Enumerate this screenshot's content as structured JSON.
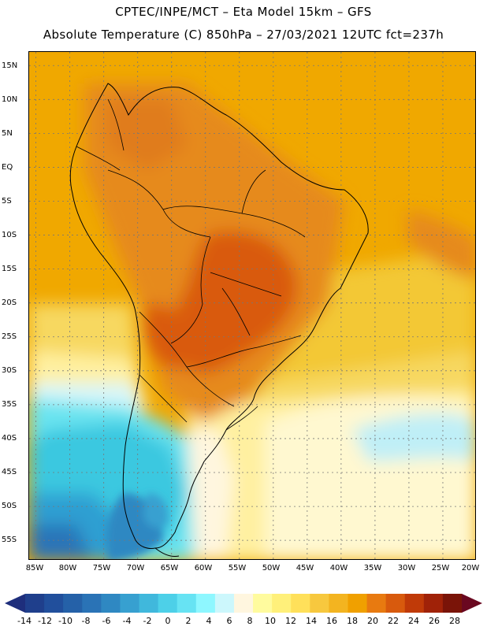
{
  "header": {
    "line1": "CPTEC/INPE/MCT –  Eta Model 15km – GFS",
    "line2": "Absolute Temperature (C) 850hPa – 27/03/2021 12UTC fct=237h"
  },
  "map": {
    "lat_labels": [
      "15N",
      "10N",
      "5N",
      "EQ",
      "5S",
      "10S",
      "15S",
      "20S",
      "25S",
      "30S",
      "35S",
      "40S",
      "45S",
      "50S",
      "55S"
    ],
    "lon_labels": [
      "85W",
      "80W",
      "75W",
      "70W",
      "65W",
      "60W",
      "55W",
      "50W",
      "45W",
      "40W",
      "35W",
      "30W",
      "25W",
      "20W"
    ],
    "lat_range": [
      17,
      -58
    ],
    "lon_range": [
      -86,
      -20
    ],
    "gridlines": "dotted",
    "shading": [
      {
        "color": "#f0a800",
        "level": "18-20 background ocean north"
      },
      {
        "color": "#e68a1a",
        "level": "20-22 continent"
      },
      {
        "color": "#d95a0d",
        "level": "22-24 central Brazil"
      },
      {
        "color": "#f3c836",
        "level": "16-18 south Atlantic"
      },
      {
        "color": "#fff0a0",
        "level": "10-12"
      },
      {
        "color": "#d8f6f9",
        "level": "4-6"
      },
      {
        "color": "#6be4f0",
        "level": "2-4"
      },
      {
        "color": "#3ac8e0",
        "level": "0-2"
      },
      {
        "color": "#2f9fd2",
        "level": "-4 to -2"
      },
      {
        "color": "#2b74b8",
        "level": "-8 to -6"
      }
    ]
  },
  "colorbar": {
    "labels": [
      "-14",
      "-12",
      "-10",
      "-8",
      "-6",
      "-4",
      "-2",
      "0",
      "2",
      "4",
      "6",
      "8",
      "10",
      "12",
      "14",
      "16",
      "18",
      "20",
      "22",
      "24",
      "26",
      "28"
    ],
    "colors": [
      "#1f3f8c",
      "#214f9c",
      "#2561a8",
      "#2a73b6",
      "#2f88c2",
      "#37a0d0",
      "#40b8dc",
      "#4dd0e8",
      "#67e3f3",
      "#8ef7ff",
      "#ccf7fc",
      "#fff6df",
      "#fffb9e",
      "#fff07a",
      "#ffe05a",
      "#f7c83e",
      "#f3b420",
      "#f0a000",
      "#e87a10",
      "#d85a0d",
      "#c03a08",
      "#a02208",
      "#7a1408"
    ],
    "low_arrow_color": "#1e2e7c",
    "high_arrow_color": "#6a0820"
  }
}
